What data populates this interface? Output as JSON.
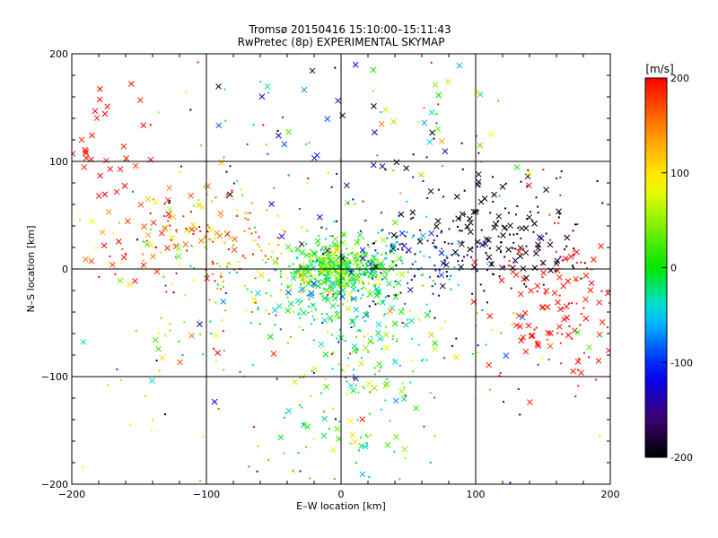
{
  "chart_data": {
    "type": "scatter",
    "title": "Tromsø 20150416 15:10:00–15:11:43",
    "subtitle": "RwPretec (8p) EXPERIMENTAL SKYMAP",
    "xlabel": "E–W location [km]",
    "ylabel": "N–S location [km]",
    "xlim": [
      -200,
      200
    ],
    "ylim": [
      -200,
      200
    ],
    "xticks": [
      -200,
      -100,
      0,
      100,
      200
    ],
    "yticks": [
      -200,
      -100,
      0,
      100,
      200
    ],
    "grid": true,
    "colorbar": {
      "label": "[m/s]",
      "range": [
        -200,
        200
      ],
      "ticks": [
        200,
        100,
        0,
        -100,
        -200
      ],
      "colormap": "black-purple-blue-cyan-green-yellow-red"
    },
    "clusters": [
      {
        "marker": "x",
        "x": 0,
        "y": 0,
        "sx": 18,
        "sy": 14,
        "v": 20,
        "vs": 35,
        "n": 120
      },
      {
        "marker": "dot",
        "x": 0,
        "y": 0,
        "sx": 16,
        "sy": 12,
        "v": 25,
        "vs": 35,
        "n": 300
      },
      {
        "marker": "x",
        "x": -5,
        "y": -25,
        "sx": 25,
        "sy": 20,
        "v": -30,
        "vs": 30,
        "n": 60
      },
      {
        "marker": "dot",
        "x": 10,
        "y": -30,
        "sx": 30,
        "sy": 30,
        "v": -20,
        "vs": 30,
        "n": 120
      },
      {
        "marker": "x",
        "x": 15,
        "y": -130,
        "sx": 22,
        "sy": 40,
        "v": 20,
        "vs": 50,
        "n": 40
      },
      {
        "marker": "dot",
        "x": 10,
        "y": -120,
        "sx": 30,
        "sy": 45,
        "v": 0,
        "vs": 40,
        "n": 60
      },
      {
        "marker": "x",
        "x": -180,
        "y": 110,
        "sx": 20,
        "sy": 30,
        "v": 195,
        "vs": 10,
        "n": 35
      },
      {
        "marker": "x",
        "x": -120,
        "y": 30,
        "sx": 30,
        "sy": 25,
        "v": 150,
        "vs": 50,
        "n": 50
      },
      {
        "marker": "dot",
        "x": -100,
        "y": 20,
        "sx": 35,
        "sy": 25,
        "v": 140,
        "vs": 60,
        "n": 110
      },
      {
        "marker": "dot",
        "x": -70,
        "y": -10,
        "sx": 40,
        "sy": 35,
        "v": 60,
        "vs": 70,
        "n": 90
      },
      {
        "marker": "x",
        "x": 115,
        "y": 35,
        "sx": 35,
        "sy": 30,
        "v": -200,
        "vs": 10,
        "n": 70
      },
      {
        "marker": "dot",
        "x": 110,
        "y": 30,
        "sx": 40,
        "sy": 35,
        "v": -190,
        "vs": 25,
        "n": 120
      },
      {
        "marker": "x",
        "x": 160,
        "y": -40,
        "sx": 25,
        "sy": 30,
        "v": 195,
        "vs": 8,
        "n": 70
      },
      {
        "marker": "dot",
        "x": 170,
        "y": -30,
        "sx": 25,
        "sy": 35,
        "v": 190,
        "vs": 10,
        "n": 60
      },
      {
        "marker": "x",
        "x": 60,
        "y": 15,
        "sx": 35,
        "sy": 20,
        "v": -130,
        "vs": 40,
        "n": 25
      },
      {
        "marker": "dot",
        "x": 50,
        "y": 10,
        "sx": 30,
        "sy": 20,
        "v": -110,
        "vs": 50,
        "n": 80
      },
      {
        "marker": "x",
        "x": 80,
        "y": 140,
        "sx": 25,
        "sy": 30,
        "v": 40,
        "vs": 80,
        "n": 20
      },
      {
        "marker": "x",
        "x": 0,
        "y": 120,
        "sx": 60,
        "sy": 45,
        "v": -100,
        "vs": 100,
        "n": 30
      },
      {
        "marker": "dot",
        "x": 0,
        "y": 120,
        "sx": 70,
        "sy": 50,
        "v": 0,
        "vs": 130,
        "n": 40
      },
      {
        "marker": "x",
        "x": 0,
        "y": -60,
        "sx": 100,
        "sy": 40,
        "v": 50,
        "vs": 100,
        "n": 40
      },
      {
        "marker": "dot",
        "x": -20,
        "y": -60,
        "sx": 100,
        "sy": 40,
        "v": 40,
        "vs": 110,
        "n": 80
      },
      {
        "marker": "dot",
        "x": 0,
        "y": 0,
        "sx": 110,
        "sy": 100,
        "v": 0,
        "vs": 150,
        "n": 120
      }
    ]
  }
}
